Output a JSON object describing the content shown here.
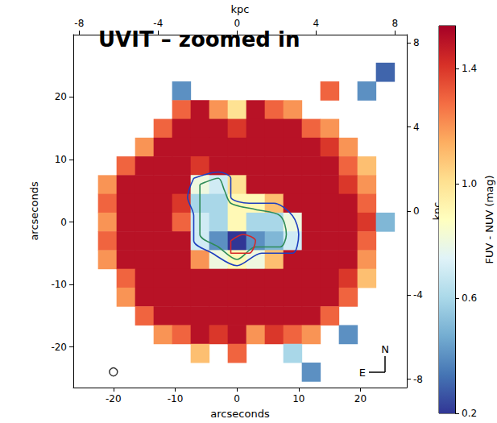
{
  "chart_data": {
    "type": "heatmap",
    "annotation": "UVIT – zoomed in",
    "x_label": "arcseconds",
    "y_label": "arcseconds",
    "x2_label": "kpc",
    "y2_label": "kpc",
    "x": [
      -24,
      -21,
      -18,
      -15,
      -12,
      -9,
      -6,
      -3,
      0,
      3,
      6,
      9,
      12,
      15,
      18,
      21,
      24
    ],
    "y": [
      24,
      21,
      18,
      15,
      12,
      9,
      6,
      3,
      0,
      -3,
      -6,
      -9,
      -12,
      -15,
      -18,
      -21,
      -24
    ],
    "values": [
      [
        null,
        null,
        null,
        null,
        null,
        null,
        null,
        null,
        null,
        null,
        null,
        null,
        null,
        null,
        null,
        null,
        0.3
      ],
      [
        null,
        null,
        null,
        null,
        null,
        0.4,
        null,
        null,
        null,
        null,
        null,
        null,
        null,
        1.3,
        null,
        0.4,
        null
      ],
      [
        null,
        null,
        null,
        null,
        null,
        1.3,
        1.5,
        1.2,
        1.0,
        1.5,
        1.3,
        1.2,
        null,
        null,
        null,
        null,
        null
      ],
      [
        null,
        null,
        null,
        null,
        1.3,
        1.5,
        1.5,
        1.5,
        1.4,
        1.5,
        1.5,
        1.5,
        1.3,
        1.2,
        null,
        null,
        null
      ],
      [
        null,
        null,
        null,
        1.2,
        1.5,
        1.5,
        1.5,
        1.5,
        1.5,
        1.5,
        1.5,
        1.5,
        1.5,
        1.4,
        1.2,
        null,
        null
      ],
      [
        null,
        null,
        1.3,
        1.5,
        1.5,
        1.5,
        1.4,
        1.5,
        1.5,
        1.5,
        1.5,
        1.5,
        1.5,
        1.5,
        1.3,
        1.1,
        null
      ],
      [
        null,
        1.2,
        1.5,
        1.5,
        1.5,
        1.5,
        0.8,
        0.7,
        1.0,
        1.5,
        1.5,
        1.5,
        1.5,
        1.5,
        1.4,
        1.2,
        null
      ],
      [
        null,
        1.3,
        1.5,
        1.5,
        1.5,
        1.4,
        0.6,
        0.6,
        0.9,
        0.9,
        1.1,
        1.5,
        1.5,
        1.5,
        1.5,
        1.3,
        null
      ],
      [
        null,
        1.2,
        1.5,
        1.5,
        1.5,
        1.3,
        0.7,
        0.6,
        0.9,
        0.6,
        0.6,
        0.8,
        1.5,
        1.5,
        1.5,
        1.4,
        0.5
      ],
      [
        null,
        1.3,
        1.5,
        1.5,
        1.5,
        1.5,
        0.7,
        0.4,
        0.2,
        0.4,
        0.5,
        0.7,
        1.5,
        1.5,
        1.5,
        1.3,
        null
      ],
      [
        null,
        1.2,
        1.5,
        1.5,
        1.5,
        1.5,
        1.2,
        0.8,
        0.9,
        0.8,
        1.1,
        1.5,
        1.5,
        1.5,
        1.5,
        1.2,
        null
      ],
      [
        null,
        null,
        1.3,
        1.5,
        1.5,
        1.5,
        1.5,
        1.5,
        1.5,
        1.5,
        1.5,
        1.5,
        1.5,
        1.5,
        1.4,
        1.1,
        null
      ],
      [
        null,
        null,
        1.2,
        1.5,
        1.5,
        1.5,
        1.5,
        1.5,
        1.5,
        1.5,
        1.5,
        1.5,
        1.5,
        1.5,
        1.3,
        null,
        null
      ],
      [
        null,
        null,
        null,
        1.3,
        1.5,
        1.5,
        1.5,
        1.5,
        1.5,
        1.5,
        1.5,
        1.5,
        1.5,
        1.3,
        null,
        null,
        null
      ],
      [
        null,
        null,
        null,
        null,
        1.2,
        1.3,
        1.5,
        1.4,
        1.5,
        1.2,
        1.4,
        1.3,
        1.2,
        null,
        0.4,
        null,
        null
      ],
      [
        null,
        null,
        null,
        null,
        null,
        null,
        1.1,
        null,
        1.3,
        null,
        null,
        0.6,
        null,
        null,
        null,
        null,
        null
      ],
      [
        null,
        null,
        null,
        null,
        null,
        null,
        null,
        null,
        null,
        null,
        null,
        null,
        0.4,
        null,
        null,
        null,
        null
      ]
    ],
    "xlim": [
      -26.5,
      27.5
    ],
    "xticks": [
      -20,
      -10,
      0,
      10,
      20
    ],
    "ylim": [
      -26.5,
      30
    ],
    "yticks": [
      -20,
      -10,
      0,
      10,
      20
    ],
    "x2lim": [
      -8.3,
      8.6
    ],
    "x2ticks": [
      -8,
      -4,
      0,
      4,
      8
    ],
    "y2lim": [
      -8.4,
      8.4
    ],
    "y2ticks": [
      -8,
      -4,
      0,
      4,
      8
    ],
    "colorbar": {
      "label": "FUV - NUV (mag)",
      "lim": [
        0.2,
        1.55
      ],
      "ticks": [
        0.2,
        0.6,
        {
          "value": 1,
          "label": "1.0"
        },
        1.4
      ]
    },
    "contours": [
      {
        "color": "#1f3fbf",
        "x": [
          -7,
          -3,
          -1,
          -1,
          2,
          6,
          9,
          10,
          9,
          4,
          0,
          -4,
          -7,
          -7,
          -8,
          -7
        ],
        "y": [
          7,
          8,
          7,
          4,
          3,
          3,
          1,
          -2,
          -5,
          -5,
          -7,
          -5,
          -3,
          1,
          4,
          7
        ]
      },
      {
        "color": "#2e8b57",
        "x": [
          -6,
          -3,
          -2,
          -1,
          3,
          7,
          8,
          7,
          3,
          0,
          -3,
          -6,
          -6,
          -6
        ],
        "y": [
          6,
          7,
          5,
          3,
          2,
          1,
          -2,
          -4,
          -4,
          -6,
          -4,
          -2,
          2,
          6
        ]
      },
      {
        "color": "#d62728",
        "x": [
          -1,
          1,
          3,
          2,
          -1,
          -1
        ],
        "y": [
          -3,
          -2,
          -3,
          -5,
          -5,
          -3
        ]
      }
    ],
    "beam": {
      "x": -20,
      "y": -24
    },
    "compass": {
      "north": "N",
      "east": "E"
    },
    "grid": false
  }
}
